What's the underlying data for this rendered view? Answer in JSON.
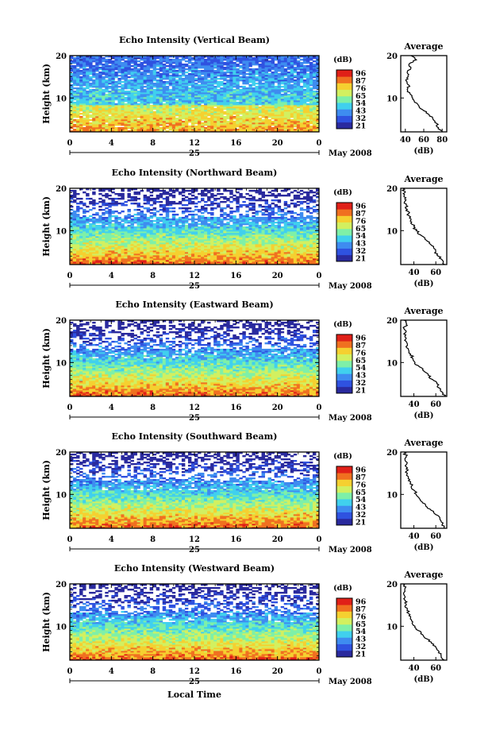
{
  "chart_data": {
    "type": "heatmap",
    "x_label": "Local Time",
    "date_label": "May 2008",
    "day_label": "25",
    "y_label": "Height (km)",
    "x_ticks": [
      "0",
      "4",
      "8",
      "12",
      "16",
      "20",
      "0"
    ],
    "y_ticks": [
      "10",
      "20"
    ],
    "x_range_hours": [
      0,
      24
    ],
    "y_range_km": [
      2,
      20
    ],
    "colorbar": {
      "unit": "(dB)",
      "levels": [
        "96",
        "87",
        "76",
        "65",
        "54",
        "43",
        "32",
        "21"
      ],
      "colors": [
        "#2a2a9e",
        "#2f52e0",
        "#3e8cf0",
        "#40d0ee",
        "#7ef0a8",
        "#d2f060",
        "#f5d030",
        "#f07020",
        "#e02018"
      ]
    },
    "profile_title": "Average",
    "profile_xlabel": "(dB)",
    "panels": [
      {
        "title": "Echo Intensity (Vertical Beam)",
        "profile_xticks": [
          "40",
          "60",
          "80"
        ],
        "profile_xlim": [
          35,
          85
        ],
        "profile": {
          "height_km": [
            2,
            3,
            4,
            5,
            6,
            7,
            8,
            9,
            10,
            11,
            12,
            13,
            14,
            15,
            16,
            17,
            18,
            19,
            20
          ],
          "db": [
            80,
            76,
            74,
            70,
            66,
            60,
            55,
            50,
            48,
            45,
            42,
            44,
            41,
            43,
            42,
            46,
            44,
            52,
            46
          ]
        }
      },
      {
        "title": "Echo Intensity (Northward Beam)",
        "profile_xticks": [
          "40",
          "60"
        ],
        "profile_xlim": [
          28,
          70
        ],
        "profile": {
          "height_km": [
            2,
            3,
            4,
            5,
            6,
            7,
            8,
            9,
            10,
            11,
            12,
            13,
            14,
            15,
            16,
            17,
            18,
            19,
            20
          ],
          "db": [
            68,
            66,
            62,
            60,
            58,
            54,
            50,
            46,
            42,
            40,
            38,
            36,
            35,
            34,
            33,
            32,
            31,
            32,
            30
          ]
        }
      },
      {
        "title": "Echo Intensity (Eastward Beam)",
        "profile_xticks": [
          "40",
          "60"
        ],
        "profile_xlim": [
          28,
          70
        ],
        "profile": {
          "height_km": [
            2,
            3,
            4,
            5,
            6,
            7,
            8,
            9,
            10,
            11,
            12,
            13,
            14,
            15,
            16,
            17,
            18,
            19,
            20
          ],
          "db": [
            68,
            66,
            63,
            61,
            57,
            53,
            49,
            45,
            41,
            39,
            37,
            35,
            34,
            33,
            32,
            32,
            31,
            33,
            31
          ]
        }
      },
      {
        "title": "Echo Intensity (Southward Beam)",
        "profile_xticks": [
          "40",
          "60"
        ],
        "profile_xlim": [
          28,
          70
        ],
        "profile": {
          "height_km": [
            2,
            3,
            4,
            5,
            6,
            7,
            8,
            9,
            10,
            11,
            12,
            13,
            14,
            15,
            16,
            17,
            18,
            19,
            20
          ],
          "db": [
            68,
            66,
            64,
            62,
            58,
            52,
            48,
            45,
            42,
            40,
            38,
            37,
            35,
            34,
            33,
            33,
            32,
            33,
            31
          ]
        }
      },
      {
        "title": "Echo Intensity (Westward Beam)",
        "profile_xticks": [
          "40",
          "60"
        ],
        "profile_xlim": [
          28,
          70
        ],
        "profile": {
          "height_km": [
            2,
            3,
            4,
            5,
            6,
            7,
            8,
            9,
            10,
            11,
            12,
            13,
            14,
            15,
            16,
            17,
            18,
            19,
            20
          ],
          "db": [
            68,
            65,
            63,
            60,
            56,
            52,
            48,
            44,
            41,
            39,
            37,
            35,
            34,
            33,
            32,
            32,
            31,
            32,
            30
          ]
        }
      }
    ]
  }
}
